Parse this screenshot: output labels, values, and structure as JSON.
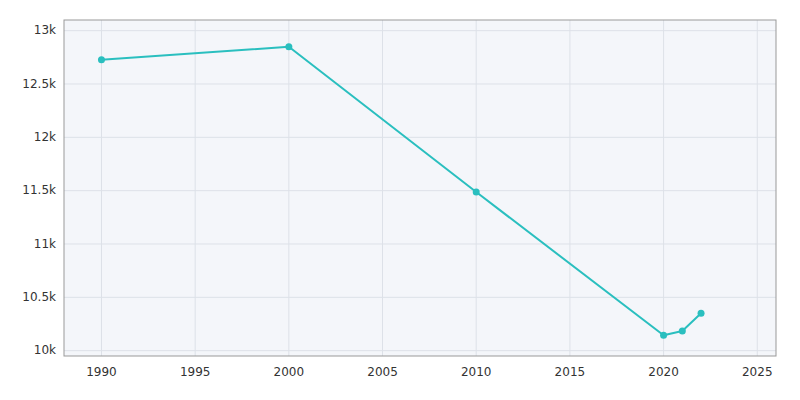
{
  "chart_data": {
    "type": "line",
    "x": [
      1990,
      2000,
      2010,
      2020,
      2021,
      2022
    ],
    "values": [
      12727,
      12849,
      11487,
      10145,
      10185,
      10351
    ],
    "color": "#2abfbf",
    "marker": "circle",
    "xlim": [
      1988,
      2026
    ],
    "ylim": [
      9950,
      13100
    ],
    "xticks": [
      1990,
      1995,
      2000,
      2005,
      2010,
      2015,
      2020,
      2025
    ],
    "yticks": [
      {
        "value": 10000,
        "label": "10k"
      },
      {
        "value": 10500,
        "label": "10.5k"
      },
      {
        "value": 11000,
        "label": "11k"
      },
      {
        "value": 11500,
        "label": "11.5k"
      },
      {
        "value": 12000,
        "label": "12k"
      },
      {
        "value": 12500,
        "label": "12.5k"
      },
      {
        "value": 13000,
        "label": "13k"
      }
    ],
    "grid": true
  }
}
